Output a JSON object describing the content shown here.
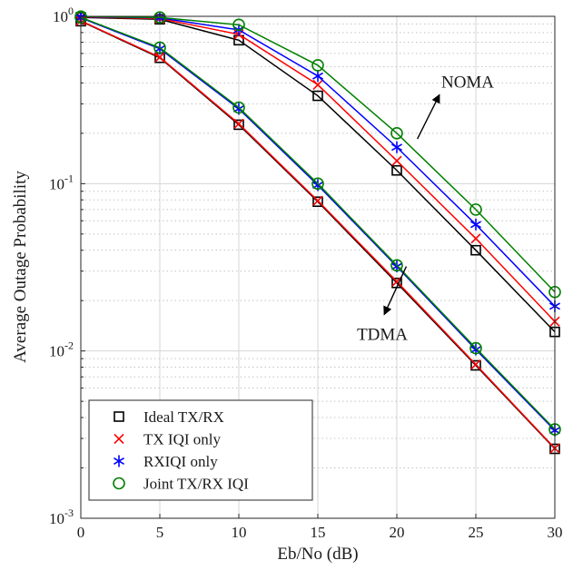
{
  "chart_data": {
    "type": "line",
    "xlabel": "Eb/No (dB)",
    "ylabel": "Average Outage Probability",
    "xlim": [
      0,
      30
    ],
    "ylim": [
      0.001,
      1
    ],
    "yscale": "log",
    "xticks": [
      "0",
      "5",
      "10",
      "15",
      "20",
      "25",
      "30"
    ],
    "x": [
      0,
      5,
      10,
      15,
      20,
      25,
      30
    ],
    "grid": true,
    "legend_placement": "bottom-left",
    "series": [
      {
        "name": "Ideal TX/RX",
        "group": "NOMA",
        "marker": "square",
        "color": "#000000",
        "values": [
          0.985,
          0.96,
          0.72,
          0.335,
          0.12,
          0.04,
          0.013
        ]
      },
      {
        "name": "TX IQI only",
        "group": "NOMA",
        "marker": "x",
        "color": "#ff0000",
        "values": [
          0.99,
          0.97,
          0.78,
          0.39,
          0.137,
          0.047,
          0.015
        ]
      },
      {
        "name": "RXIQI only",
        "group": "NOMA",
        "marker": "asterisk",
        "color": "#0000ff",
        "values": [
          0.995,
          0.98,
          0.83,
          0.44,
          0.165,
          0.057,
          0.0185
        ]
      },
      {
        "name": "Joint TX/RX IQI",
        "group": "NOMA",
        "marker": "circle",
        "color": "#008000",
        "values": [
          0.998,
          0.985,
          0.89,
          0.51,
          0.2,
          0.07,
          0.0225
        ]
      },
      {
        "name": "Ideal TX/RX",
        "group": "TDMA",
        "marker": "square",
        "color": "#000000",
        "values": [
          0.935,
          0.565,
          0.225,
          0.078,
          0.0255,
          0.0082,
          0.0026
        ]
      },
      {
        "name": "TX IQI only",
        "group": "TDMA",
        "marker": "x",
        "color": "#ff0000",
        "values": [
          0.94,
          0.57,
          0.228,
          0.079,
          0.026,
          0.0083,
          0.00262
        ]
      },
      {
        "name": "RXIQI only",
        "group": "TDMA",
        "marker": "asterisk",
        "color": "#0000ff",
        "values": [
          0.98,
          0.64,
          0.28,
          0.098,
          0.032,
          0.0102,
          0.00335
        ]
      },
      {
        "name": "Joint TX/RX IQI",
        "group": "TDMA",
        "marker": "circle",
        "color": "#008000",
        "values": [
          0.985,
          0.65,
          0.285,
          0.1,
          0.0325,
          0.0104,
          0.0034
        ]
      }
    ],
    "legend": [
      {
        "label": "Ideal TX/RX",
        "marker": "square",
        "color": "#000000"
      },
      {
        "label": "TX IQI only",
        "marker": "x",
        "color": "#ff0000"
      },
      {
        "label": "RXIQI only",
        "marker": "asterisk",
        "color": "#0000ff"
      },
      {
        "label": "Joint TX/RX IQI",
        "marker": "circle",
        "color": "#008000"
      }
    ],
    "annotations": [
      {
        "text": "NOMA",
        "arrow_from": {
          "x": 21.3,
          "y": 0.185
        },
        "arrow_to": {
          "x": 22.7,
          "y": 0.34
        }
      },
      {
        "text": "TDMA",
        "arrow_from": {
          "x": 20.6,
          "y": 0.032
        },
        "arrow_to": {
          "x": 19.2,
          "y": 0.0165
        }
      }
    ]
  }
}
